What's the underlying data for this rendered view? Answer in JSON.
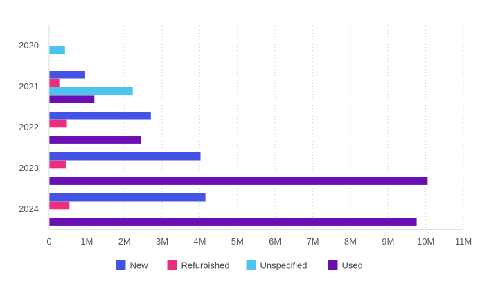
{
  "chart_data": {
    "type": "bar",
    "orientation": "horizontal",
    "grouped": true,
    "categories": [
      "2020",
      "2021",
      "2022",
      "2023",
      "2024"
    ],
    "series": [
      {
        "name": "New",
        "color": "#4353e3",
        "values": [
          0,
          950000,
          2700000,
          4020000,
          4150000
        ]
      },
      {
        "name": "Refurbished",
        "color": "#ef2d7f",
        "values": [
          0,
          270000,
          470000,
          440000,
          540000
        ]
      },
      {
        "name": "Unspecified",
        "color": "#4ec3ee",
        "values": [
          420000,
          2220000,
          0,
          0,
          0
        ]
      },
      {
        "name": "Used",
        "color": "#6a0fb3",
        "values": [
          0,
          1200000,
          2430000,
          10050000,
          9760000
        ]
      }
    ],
    "xlim": [
      0,
      11000000
    ],
    "x_ticks": [
      0,
      1000000,
      2000000,
      3000000,
      4000000,
      5000000,
      6000000,
      7000000,
      8000000,
      9000000,
      10000000,
      11000000
    ],
    "x_tick_labels": [
      "0",
      "1M",
      "2M",
      "3M",
      "4M",
      "5M",
      "6M",
      "7M",
      "8M",
      "9M",
      "10M",
      "11M"
    ],
    "grid": "vertical-dotted",
    "legend_position": "bottom-center",
    "title": "",
    "xlabel": "",
    "ylabel": ""
  }
}
